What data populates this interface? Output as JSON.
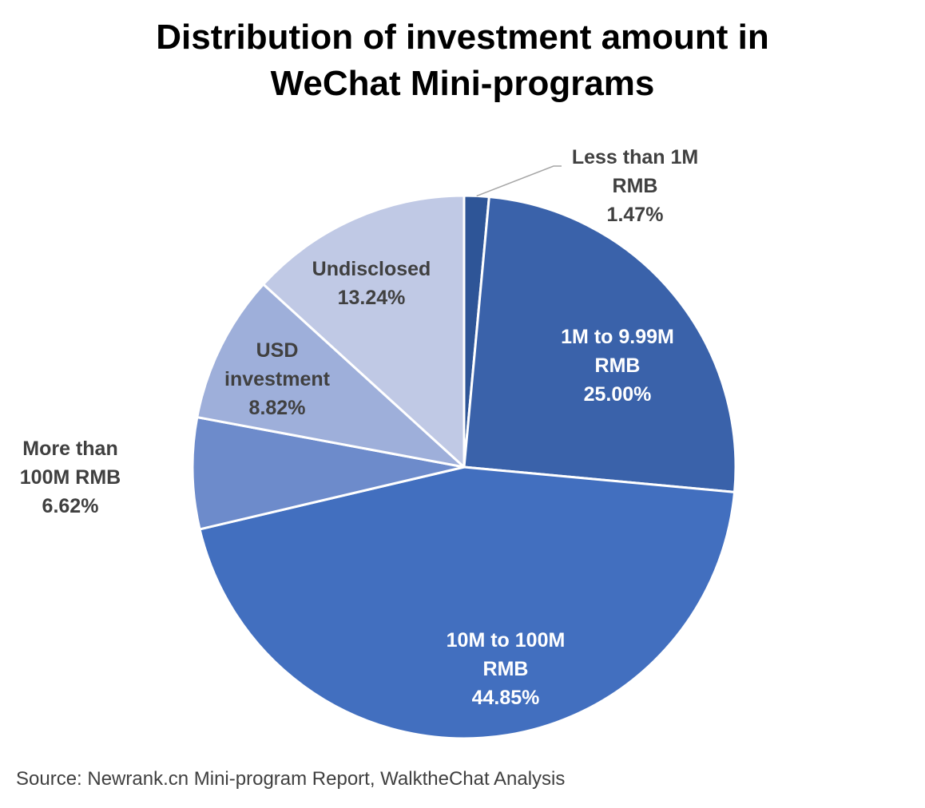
{
  "chart_data": {
    "type": "pie",
    "title_lines": [
      "Distribution of investment amount in",
      "WeChat Mini-programs"
    ],
    "slices": [
      {
        "label_lines": [
          "Less than 1M",
          "RMB"
        ],
        "value": 1.47,
        "value_label": "1.47%",
        "color": "#2e5597",
        "label_color": "#404040",
        "label_position": "outside-leader"
      },
      {
        "label_lines": [
          "1M to 9.99M",
          "RMB"
        ],
        "value": 25.0,
        "value_label": "25.00%",
        "color": "#3a62aa",
        "label_color": "#ffffff",
        "label_position": "inside"
      },
      {
        "label_lines": [
          "10M to 100M",
          "RMB"
        ],
        "value": 44.85,
        "value_label": "44.85%",
        "color": "#426fbf",
        "label_color": "#ffffff",
        "label_position": "inside"
      },
      {
        "label_lines": [
          "More than",
          "100M RMB"
        ],
        "value": 6.62,
        "value_label": "6.62%",
        "color": "#6d8bcb",
        "label_color": "#404040",
        "label_position": "outside"
      },
      {
        "label_lines": [
          "USD",
          "investment"
        ],
        "value": 8.82,
        "value_label": "8.82%",
        "color": "#9eafda",
        "label_color": "#404040",
        "label_position": "inside"
      },
      {
        "label_lines": [
          "Undisclosed"
        ],
        "value": 13.24,
        "value_label": "13.24%",
        "color": "#c0c9e5",
        "label_color": "#404040",
        "label_position": "inside"
      }
    ],
    "start_angle": "12 o'clock",
    "direction": "clockwise",
    "legend": "none"
  },
  "source": "Source: Newrank.cn Mini-program Report, WalktheChat Analysis"
}
